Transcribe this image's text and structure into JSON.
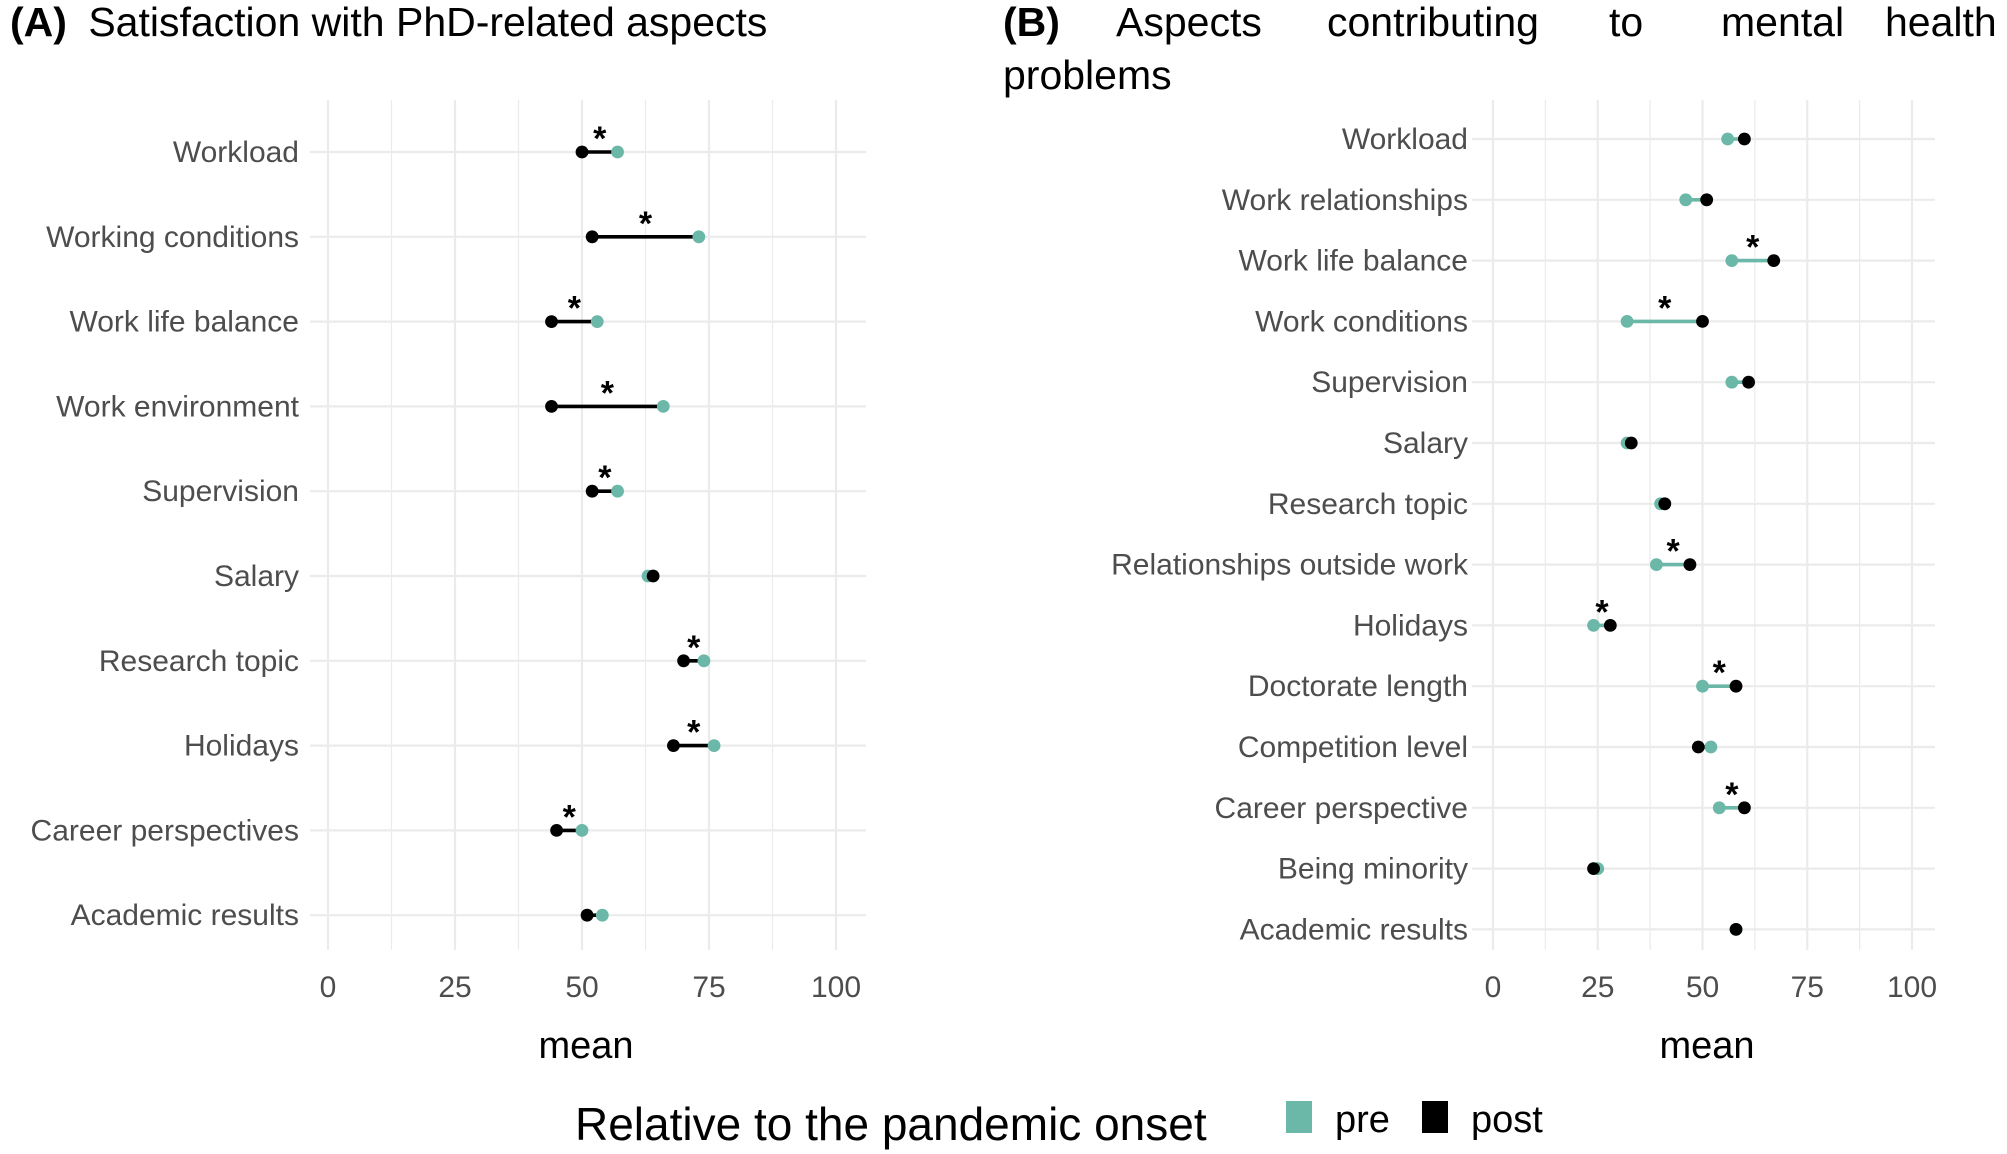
{
  "chart_data": [
    {
      "type": "dumbbell",
      "panel": "(A)",
      "title": "Satisfaction with PhD-related aspects",
      "xlabel": "mean",
      "ylabel": "",
      "xlim": [
        0,
        100
      ],
      "xticks": [
        0,
        25,
        50,
        75,
        100
      ],
      "xtick_labels": [
        "0",
        "25",
        "50",
        "75",
        "100"
      ],
      "categories": [
        {
          "label": "Workload",
          "pre": 57,
          "post": 50,
          "star": true
        },
        {
          "label": "Working conditions",
          "pre": 73,
          "post": 52,
          "star": true
        },
        {
          "label": "Work life balance",
          "pre": 53,
          "post": 44,
          "star": true
        },
        {
          "label": "Work environment",
          "pre": 66,
          "post": 44,
          "star": true
        },
        {
          "label": "Supervision",
          "pre": 57,
          "post": 52,
          "star": true
        },
        {
          "label": "Salary",
          "pre": 63,
          "post": 64,
          "star": false
        },
        {
          "label": "Research topic",
          "pre": 74,
          "post": 70,
          "star": true
        },
        {
          "label": "Holidays",
          "pre": 76,
          "post": 68,
          "star": true
        },
        {
          "label": "Career perspectives",
          "pre": 50,
          "post": 45,
          "star": true
        },
        {
          "label": "Academic results",
          "pre": 54,
          "post": 51,
          "star": false
        }
      ]
    },
    {
      "type": "dumbbell",
      "panel": "(B)",
      "title": "Aspects contributing to mental health problems",
      "title_lines": [
        "Aspects contributing to mental health",
        "problems"
      ],
      "xlabel": "mean",
      "ylabel": "",
      "xlim": [
        0,
        100
      ],
      "xticks": [
        0,
        25,
        50,
        75,
        100
      ],
      "xtick_labels": [
        "0",
        "25",
        "50",
        "75",
        "100"
      ],
      "categories": [
        {
          "label": "Workload",
          "pre": 56,
          "post": 60,
          "star": false
        },
        {
          "label": "Work relationships",
          "pre": 46,
          "post": 51,
          "star": false
        },
        {
          "label": "Work life balance",
          "pre": 57,
          "post": 67,
          "star": true
        },
        {
          "label": "Work conditions",
          "pre": 32,
          "post": 50,
          "star": true
        },
        {
          "label": "Supervision",
          "pre": 57,
          "post": 61,
          "star": false
        },
        {
          "label": "Salary",
          "pre": 32,
          "post": 33,
          "star": false
        },
        {
          "label": "Research topic",
          "pre": 40,
          "post": 41,
          "star": false
        },
        {
          "label": "Relationships outside work",
          "pre": 39,
          "post": 47,
          "star": true
        },
        {
          "label": "Holidays",
          "pre": 24,
          "post": 28,
          "star": true
        },
        {
          "label": "Doctorate length",
          "pre": 50,
          "post": 58,
          "star": true
        },
        {
          "label": "Competition level",
          "pre": 52,
          "post": 49,
          "star": false
        },
        {
          "label": "Career perspective",
          "pre": 54,
          "post": 60,
          "star": true
        },
        {
          "label": "Being minority",
          "pre": 25,
          "post": 24,
          "star": false
        },
        {
          "label": "Academic results",
          "pre": 58,
          "post": 58,
          "star": false
        }
      ]
    }
  ],
  "legend": {
    "title": "Relative to the pandemic onset",
    "items": [
      {
        "label": "pre",
        "color": "#6bb7a8"
      },
      {
        "label": "post",
        "color": "#000000"
      }
    ]
  },
  "colors": {
    "pre": "#6bb7a8",
    "post": "#000000",
    "grid": "#ebebeb",
    "star_text": "*"
  }
}
